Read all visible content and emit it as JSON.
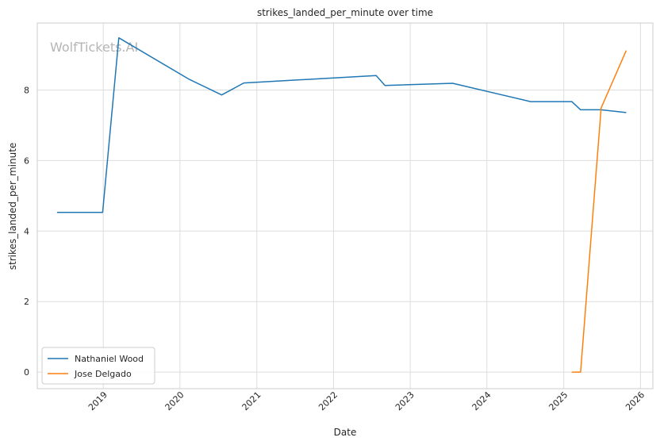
{
  "watermark": "WolfTickets.AI",
  "chart_data": {
    "type": "line",
    "title": "strikes_landed_per_minute over time",
    "xlabel": "Date",
    "ylabel": "strikes_landed_per_minute",
    "x_ticks": [
      "2019",
      "2020",
      "2021",
      "2022",
      "2023",
      "2024",
      "2025",
      "2026"
    ],
    "y_ticks": [
      0,
      2,
      4,
      6,
      8
    ],
    "xlim": [
      "2018-02-21",
      "2026-03-01"
    ],
    "ylim": [
      -0.47,
      9.9
    ],
    "grid": true,
    "legend_position": "bottom-left",
    "series": [
      {
        "name": "Nathaniel Wood",
        "color": "#1f77b4",
        "points": [
          [
            "2018-05-26",
            4.53
          ],
          [
            "2018-12-29",
            4.53
          ],
          [
            "2019-03-16",
            9.48
          ],
          [
            "2020-02-15",
            8.3
          ],
          [
            "2020-07-18",
            7.86
          ],
          [
            "2020-10-31",
            8.2
          ],
          [
            "2022-07-23",
            8.41
          ],
          [
            "2022-09-03",
            8.13
          ],
          [
            "2023-07-22",
            8.19
          ],
          [
            "2024-07-27",
            7.67
          ],
          [
            "2025-02-08",
            7.67
          ],
          [
            "2025-03-22",
            7.44
          ],
          [
            "2025-06-28",
            7.44
          ],
          [
            "2025-10-25",
            7.36
          ]
        ]
      },
      {
        "name": "Jose Delgado",
        "color": "#ff7f0e",
        "points": [
          [
            "2025-02-08",
            0.0
          ],
          [
            "2025-03-22",
            0.0
          ],
          [
            "2025-06-28",
            7.49
          ],
          [
            "2025-10-25",
            9.12
          ]
        ]
      }
    ]
  }
}
